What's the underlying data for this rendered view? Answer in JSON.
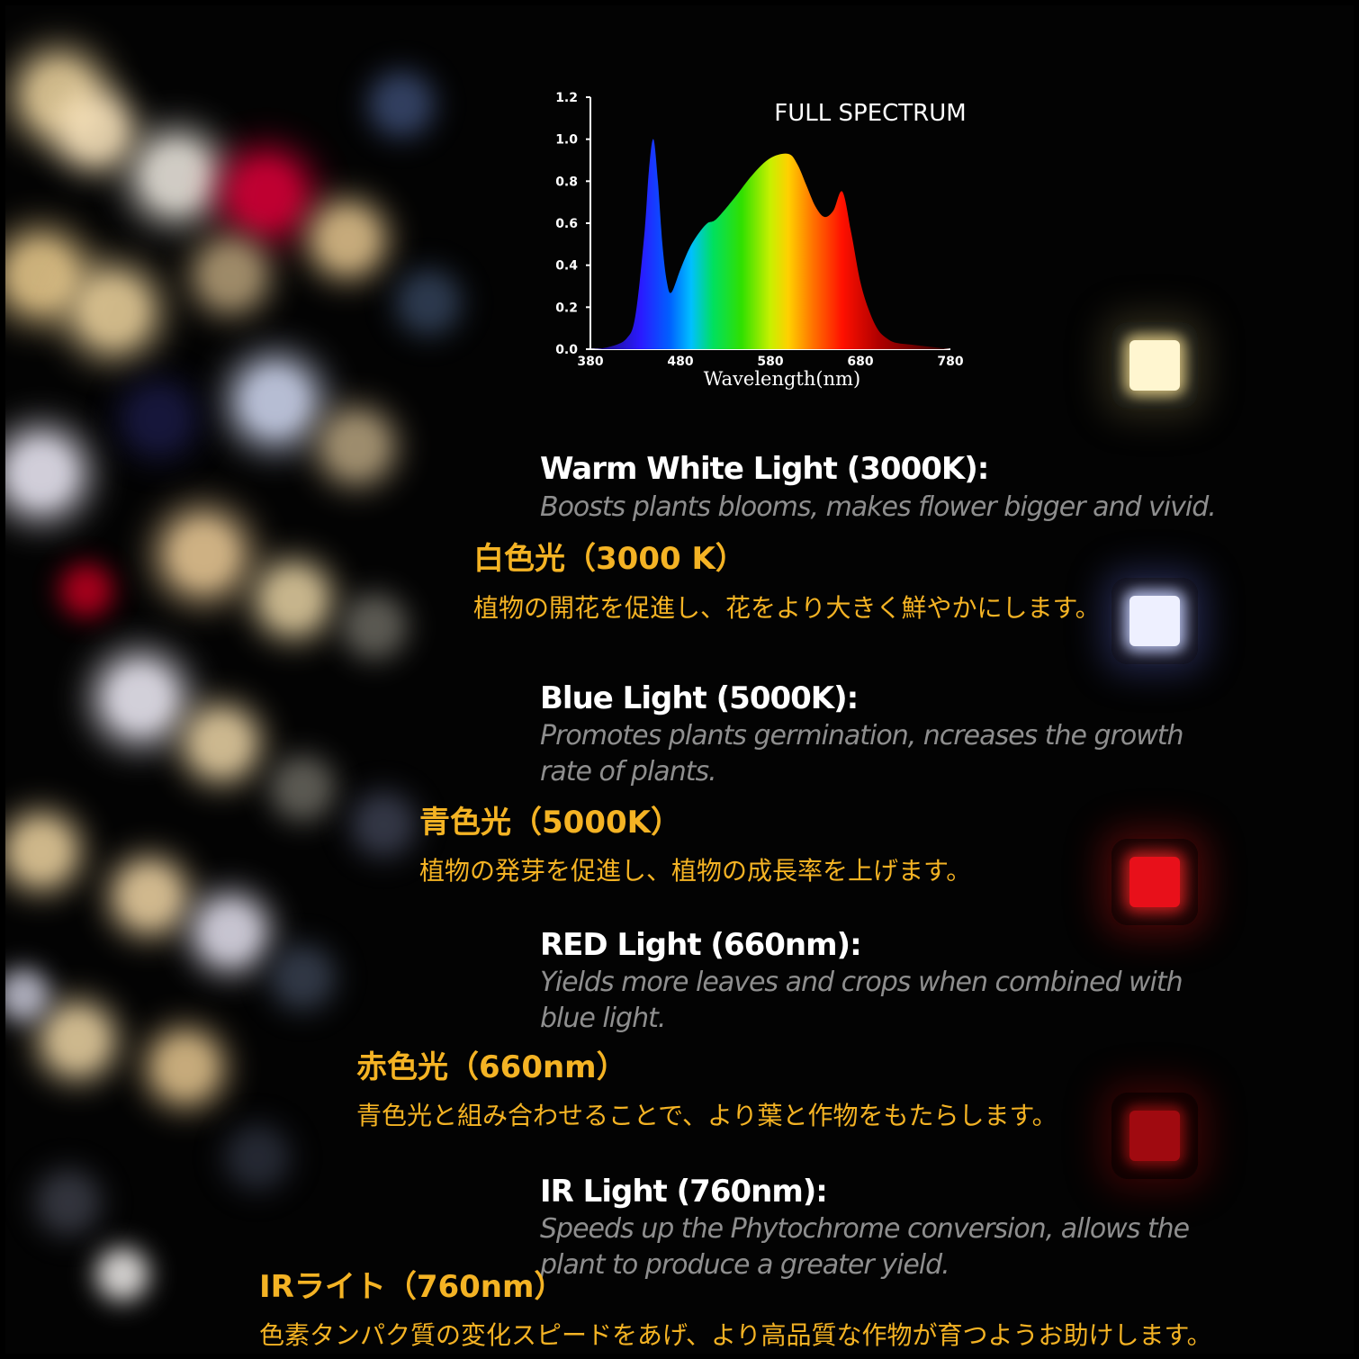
{
  "chart_data": {
    "type": "area",
    "title": "FULL SPECTRUM",
    "xlabel": "Wavelength(nm)",
    "ylabel": "",
    "xlim": [
      380,
      780
    ],
    "ylim": [
      0,
      1.2
    ],
    "x_ticks": [
      "380",
      "480",
      "580",
      "680",
      "780"
    ],
    "y_ticks": [
      "0.0",
      "0.2",
      "0.4",
      "0.6",
      "0.8",
      "1.0",
      "1.2"
    ],
    "x": [
      380,
      400,
      420,
      430,
      440,
      445,
      450,
      455,
      460,
      465,
      470,
      480,
      490,
      500,
      510,
      520,
      540,
      560,
      580,
      600,
      610,
      620,
      630,
      640,
      650,
      660,
      670,
      680,
      690,
      700,
      710,
      720,
      740,
      760,
      780
    ],
    "values": [
      0,
      0.01,
      0.05,
      0.16,
      0.55,
      0.85,
      1.0,
      0.8,
      0.5,
      0.32,
      0.27,
      0.38,
      0.48,
      0.55,
      0.6,
      0.62,
      0.72,
      0.83,
      0.91,
      0.93,
      0.88,
      0.78,
      0.68,
      0.63,
      0.66,
      0.75,
      0.55,
      0.32,
      0.18,
      0.09,
      0.05,
      0.03,
      0.02,
      0.01,
      0
    ],
    "grid": false
  },
  "sections": [
    {
      "en_title": "Warm White Light (3000K):",
      "en_desc": "Boosts plants blooms, makes flower bigger and vivid.",
      "jp_title": "白色光（3000 K）",
      "jp_desc": "植物の開花を促進し、花をより大きく鮮やかにします。"
    },
    {
      "en_title": "Blue Light (5000K):",
      "en_desc": "Promotes plants germination, ncreases the growth rate of plants.",
      "jp_title": "青色光（5000K）",
      "jp_desc": "植物の発芽を促進し、植物の成長率を上げます。"
    },
    {
      "en_title": "RED Light (660nm):",
      "en_desc": "Yields more leaves and crops when combined with blue light.",
      "jp_title": "赤色光（660nm）",
      "jp_desc": "青色光と組み合わせることで、より葉と作物をもたらします。"
    },
    {
      "en_title": "IR Light (760nm):",
      "en_desc": "Speeds up the Phytochrome conversion, allows the plant to produce a greater yield.",
      "jp_title": "IRライト（760nm）",
      "jp_desc": "色素タンパク質の変化スピードをあげ、より高品質な作物が育つようお助けします。"
    }
  ],
  "colors": {
    "jp_text": "#f4b324",
    "en_title": "#ffffff",
    "en_desc": "#8e8e8e",
    "warm_white_chip": "#fff6d0",
    "blue_chip": "#eef0ff",
    "red_chip": "#e8101a",
    "ir_chip": "#a00a10"
  }
}
